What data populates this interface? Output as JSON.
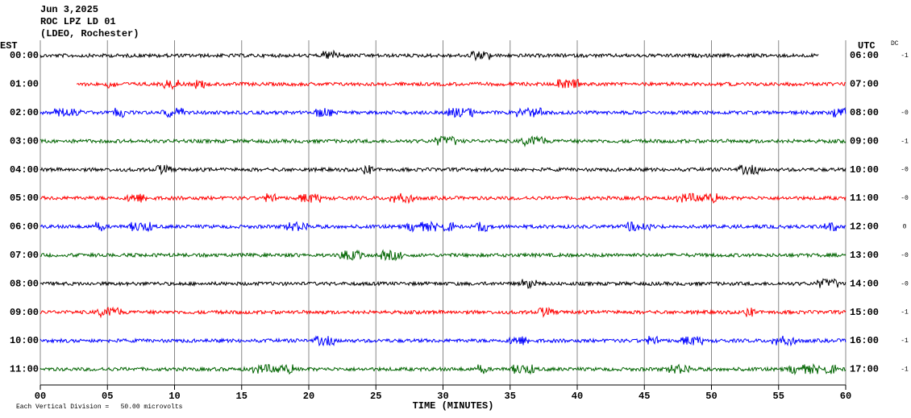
{
  "chart_data": {
    "type": "helicorder",
    "title": "Jun 3,2025",
    "station": "ROC LPZ LD 01",
    "network": "(LDEO, Rochester)",
    "left_axis_title": "EST",
    "right_axis_title": "UTC",
    "dc_title": "DC",
    "x_label": "TIME (MINUTES)",
    "footnote": "Each Vertical Division =   50.00 microvolts",
    "xlim": [
      0,
      60
    ],
    "xticks": [
      {
        "value": 0,
        "label": "00"
      },
      {
        "value": 5,
        "label": "05"
      },
      10,
      15,
      20,
      25,
      30,
      35,
      40,
      45,
      50,
      55,
      60
    ],
    "grid": true,
    "rows": [
      {
        "est": "00:00",
        "utc": "06:00",
        "dc": "-1",
        "color": "#000000",
        "start": 0,
        "end": 58
      },
      {
        "est": "01:00",
        "utc": "07:00",
        "color": "#ff0000",
        "start": 2.7,
        "end": 60
      },
      {
        "est": "02:00",
        "utc": "08:00",
        "dc": "-0",
        "color": "#0000ff",
        "start": 0,
        "end": 60
      },
      {
        "est": "03:00",
        "utc": "09:00",
        "dc": "-1",
        "color": "#006400",
        "start": 0,
        "end": 60
      },
      {
        "est": "04:00",
        "utc": "10:00",
        "dc": "-0",
        "color": "#000000",
        "start": 0,
        "end": 60
      },
      {
        "est": "05:00",
        "utc": "11:00",
        "dc": "-0",
        "color": "#ff0000",
        "start": 0,
        "end": 60
      },
      {
        "est": "06:00",
        "utc": "12:00",
        "dc": "0",
        "color": "#0000ff",
        "start": 0,
        "end": 60
      },
      {
        "est": "07:00",
        "utc": "13:00",
        "dc": "-0",
        "color": "#006400",
        "start": 0,
        "end": 60
      },
      {
        "est": "08:00",
        "utc": "14:00",
        "dc": "-0",
        "color": "#000000",
        "start": 0,
        "end": 60
      },
      {
        "est": "09:00",
        "utc": "15:00",
        "dc": "-1",
        "color": "#ff0000",
        "start": 0,
        "end": 60
      },
      {
        "est": "10:00",
        "utc": "16:00",
        "dc": "-1",
        "color": "#0000ff",
        "start": 0,
        "end": 60
      },
      {
        "est": "11:00",
        "utc": "17:00",
        "dc": "-1",
        "color": "#006400",
        "start": 0,
        "end": 60
      }
    ]
  }
}
